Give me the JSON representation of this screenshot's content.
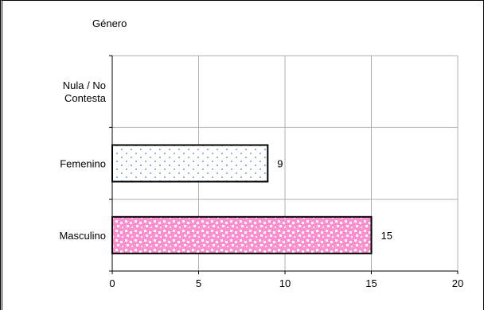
{
  "chart_data": {
    "type": "bar",
    "orientation": "horizontal",
    "title": "Género",
    "categories": [
      "Nula / No Contesta",
      "Femenino",
      "Masculino"
    ],
    "category_label_lines": [
      [
        "Nula / No",
        "Contesta"
      ],
      [
        "Femenino"
      ],
      [
        "Masculino"
      ]
    ],
    "values": [
      null,
      9,
      15
    ],
    "data_labels": [
      "",
      "9",
      "15"
    ],
    "xlim": [
      0,
      20
    ],
    "x_ticks": [
      0,
      5,
      10,
      15,
      20
    ],
    "grid": true,
    "legend": "none",
    "bar_styles": [
      {
        "pattern": "none",
        "color": "#ffffff"
      },
      {
        "pattern": "dots",
        "color": "#8fb0e0",
        "background": "#ffffff"
      },
      {
        "pattern": "confetti",
        "color": "#ffffff",
        "background": "#ff8fd0"
      }
    ],
    "colors": {
      "grid": "#b0b0b0",
      "axis": "#000000",
      "bar_border": "#000000"
    }
  }
}
